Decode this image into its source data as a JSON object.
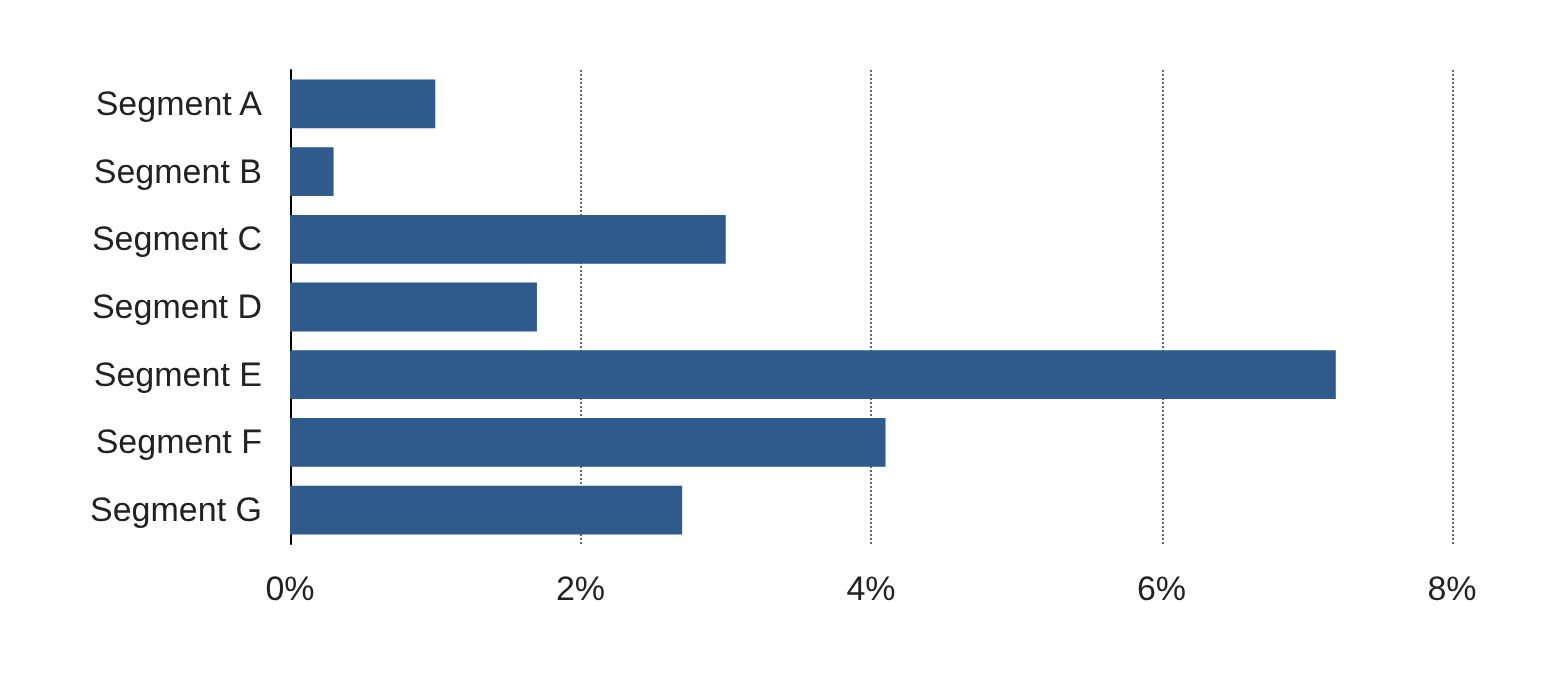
{
  "chart_data": {
    "type": "bar",
    "orientation": "horizontal",
    "categories": [
      "Segment A",
      "Segment B",
      "Segment C",
      "Segment D",
      "Segment E",
      "Segment F",
      "Segment G"
    ],
    "values": [
      1.0,
      0.3,
      3.0,
      1.7,
      7.2,
      4.1,
      2.7
    ],
    "color": "#2e5a8c",
    "xlim": [
      0,
      8
    ],
    "xticks": [
      {
        "value": 0,
        "label": "0%"
      },
      {
        "value": 2,
        "label": "2%"
      },
      {
        "value": 4,
        "label": "4%"
      },
      {
        "value": 6,
        "label": "6%"
      },
      {
        "value": 8,
        "label": "8%"
      }
    ],
    "grid": "x"
  }
}
